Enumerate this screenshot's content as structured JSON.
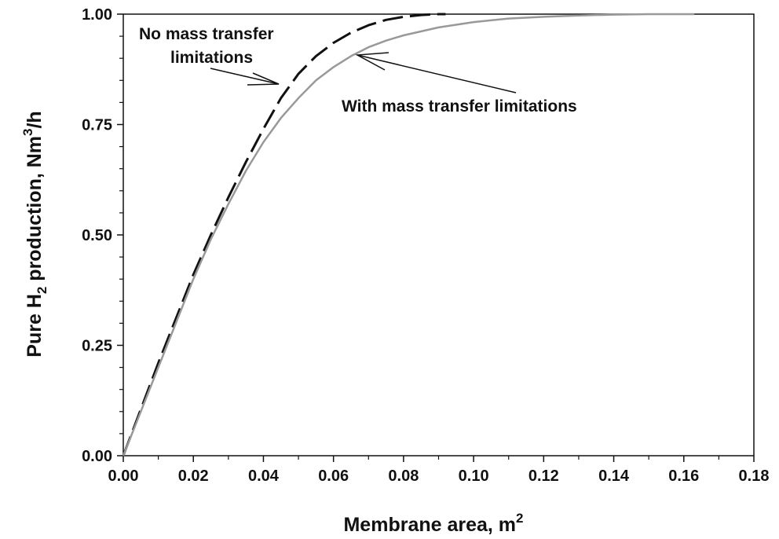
{
  "chart_data": {
    "type": "line",
    "title": "",
    "xlabel": "Membrane area, m",
    "xlabel_sup": "2",
    "ylabel_main": "Pure H",
    "ylabel_sub": "2",
    "ylabel_rest": " production, Nm",
    "ylabel_sup": "3",
    "ylabel_end": "/h",
    "xlim": [
      0,
      0.18
    ],
    "ylim": [
      0,
      1.0
    ],
    "x_ticks": [
      "0.00",
      "0.02",
      "0.04",
      "0.06",
      "0.08",
      "0.10",
      "0.12",
      "0.14",
      "0.16",
      "0.18"
    ],
    "y_ticks": [
      "0.00",
      "0.25",
      "0.50",
      "0.75",
      "1.00"
    ],
    "grid": false,
    "series": [
      {
        "name": "No mass transfer limitations",
        "style": "dashed",
        "color": "#111111",
        "x": [
          0.0,
          0.005,
          0.01,
          0.015,
          0.02,
          0.025,
          0.03,
          0.035,
          0.04,
          0.045,
          0.05,
          0.055,
          0.06,
          0.065,
          0.07,
          0.075,
          0.08,
          0.085,
          0.09,
          0.092
        ],
        "y": [
          0.0,
          0.105,
          0.21,
          0.31,
          0.41,
          0.5,
          0.585,
          0.665,
          0.74,
          0.81,
          0.865,
          0.905,
          0.935,
          0.958,
          0.975,
          0.987,
          0.994,
          0.998,
          1.0,
          1.0
        ]
      },
      {
        "name": "With mass transfer limitations",
        "style": "solid",
        "color": "#999999",
        "x": [
          0.0,
          0.005,
          0.01,
          0.015,
          0.02,
          0.025,
          0.03,
          0.035,
          0.04,
          0.045,
          0.05,
          0.055,
          0.06,
          0.065,
          0.07,
          0.075,
          0.08,
          0.09,
          0.1,
          0.11,
          0.12,
          0.13,
          0.14,
          0.15,
          0.163
        ],
        "y": [
          0.0,
          0.1,
          0.2,
          0.3,
          0.4,
          0.49,
          0.57,
          0.645,
          0.71,
          0.765,
          0.81,
          0.85,
          0.88,
          0.905,
          0.925,
          0.94,
          0.952,
          0.97,
          0.982,
          0.99,
          0.994,
          0.997,
          0.999,
          1.0,
          1.0
        ]
      }
    ],
    "annotations": [
      {
        "text_lines": [
          "No mass transfer",
          "limitations"
        ],
        "points_to_series": 0
      },
      {
        "text_lines": [
          "With mass transfer limitations"
        ],
        "points_to_series": 1
      }
    ]
  }
}
